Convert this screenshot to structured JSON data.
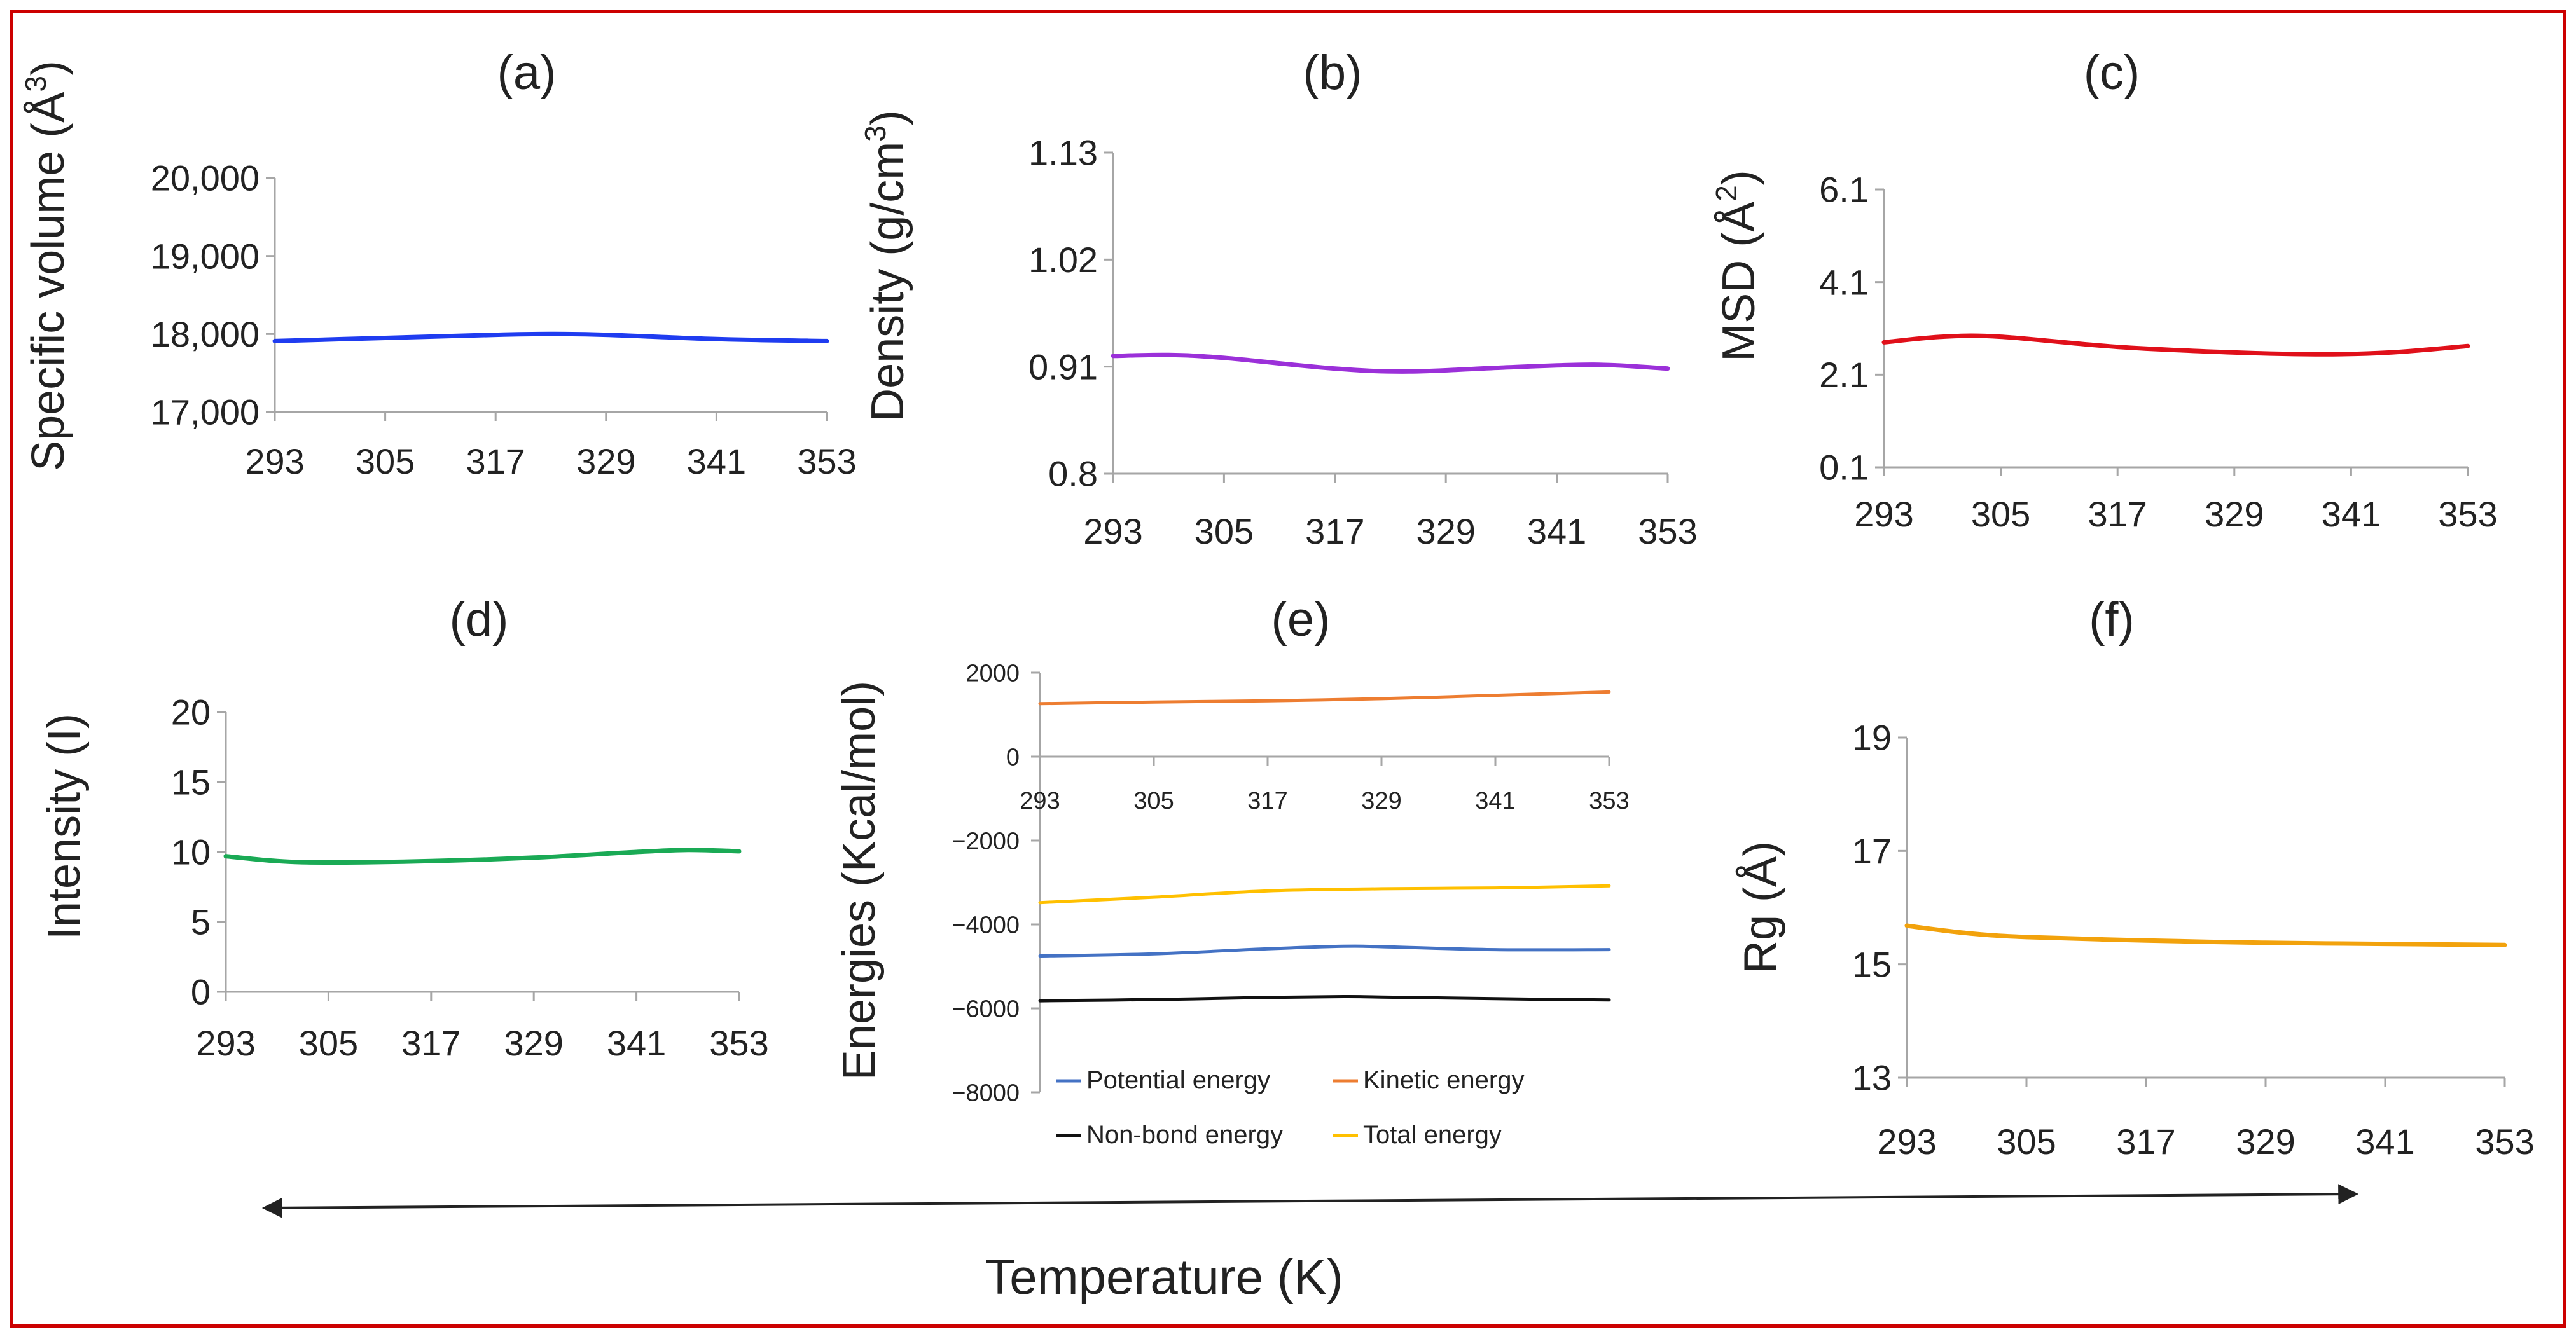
{
  "figure": {
    "border_color": "#cc0000",
    "xlabel": "Temperature (K)",
    "arrow": "double-headed-arrow"
  },
  "chart_data": [
    {
      "id": "a",
      "type": "line",
      "panel_label": "(a)",
      "xlabel": "",
      "ylabel": "Specific volume (Å³)",
      "ylabel_parts": [
        "Specific volume (",
        "Å",
        "3",
        ")"
      ],
      "x": [
        293,
        305,
        317,
        329,
        341,
        353
      ],
      "xticks": [
        "293",
        "305",
        "317",
        "329",
        "341",
        "353"
      ],
      "ylim": [
        17000,
        20000
      ],
      "yticks": [
        "17,000",
        "18,000",
        "19,000",
        "20,000"
      ],
      "grid": false,
      "series": [
        {
          "color": "#1f3cf0",
          "x": [
            293,
            305,
            317,
            323,
            329,
            341,
            353
          ],
          "values": [
            17910,
            17950,
            17990,
            18000,
            17990,
            17935,
            17910
          ]
        }
      ]
    },
    {
      "id": "b",
      "type": "line",
      "panel_label": "(b)",
      "xlabel": "",
      "ylabel": "Density (g/cm³)",
      "ylabel_parts": [
        "Density (g/cm",
        "",
        "3",
        ")"
      ],
      "x": [
        293,
        305,
        317,
        329,
        341,
        353
      ],
      "xticks": [
        "293",
        "305",
        "317",
        "329",
        "341",
        "353"
      ],
      "ylim": [
        0.8,
        1.13
      ],
      "yticks": [
        "0.8",
        "0.91",
        "1.02",
        "1.13"
      ],
      "grid": false,
      "series": [
        {
          "color": "#9b30d9",
          "x": [
            293,
            299,
            305,
            317,
            325,
            335,
            345,
            353
          ],
          "values": [
            0.921,
            0.922,
            0.919,
            0.908,
            0.905,
            0.909,
            0.912,
            0.908
          ]
        }
      ]
    },
    {
      "id": "c",
      "type": "line",
      "panel_label": "(c)",
      "xlabel": "",
      "ylabel": "MSD (Å²)",
      "ylabel_parts": [
        "MSD (",
        "Å",
        "2",
        ")"
      ],
      "x": [
        293,
        305,
        317,
        329,
        341,
        353
      ],
      "xticks": [
        "293",
        "305",
        "317",
        "329",
        "341",
        "353"
      ],
      "ylim": [
        0.1,
        6.1
      ],
      "yticks": [
        "0.1",
        "2.1",
        "4.1",
        "6.1"
      ],
      "grid": false,
      "series": [
        {
          "color": "#e0101a",
          "x": [
            293,
            299,
            305,
            317,
            329,
            338,
            345,
            353
          ],
          "values": [
            2.8,
            2.92,
            2.92,
            2.7,
            2.58,
            2.54,
            2.58,
            2.72
          ]
        }
      ]
    },
    {
      "id": "d",
      "type": "line",
      "panel_label": "(d)",
      "xlabel": "",
      "ylabel": "Intensity (I)",
      "ylabel_parts": [
        "Intensity (I)",
        "",
        "",
        ""
      ],
      "x": [
        293,
        305,
        317,
        329,
        341,
        353
      ],
      "xticks": [
        "293",
        "305",
        "317",
        "329",
        "341",
        "353"
      ],
      "ylim": [
        0,
        20
      ],
      "yticks": [
        "0",
        "5",
        "10",
        "15",
        "20"
      ],
      "grid": false,
      "series": [
        {
          "color": "#1aaa55",
          "x": [
            293,
            299,
            305,
            317,
            329,
            341,
            347,
            353
          ],
          "values": [
            9.7,
            9.35,
            9.25,
            9.35,
            9.6,
            10.0,
            10.15,
            10.05
          ]
        }
      ]
    },
    {
      "id": "e",
      "type": "line",
      "panel_label": "(e)",
      "xlabel": "",
      "ylabel": "Energies (Kcal/mol)",
      "ylabel_parts": [
        "Energies (Kcal/mol)",
        "",
        "",
        ""
      ],
      "x": [
        293,
        305,
        317,
        329,
        341,
        353
      ],
      "xticks": [
        "293",
        "305",
        "317",
        "329",
        "341",
        "353"
      ],
      "ylim": [
        -8000,
        2000
      ],
      "yticks": [
        "−8000",
        "−6000",
        "−4000",
        "−2000",
        "0",
        "2000"
      ],
      "grid": false,
      "legend_position": "bottom",
      "series": [
        {
          "name": "Potential energy",
          "color": "#4472c4",
          "x": [
            293,
            305,
            317,
            325,
            329,
            341,
            353
          ],
          "values": [
            -4750,
            -4700,
            -4580,
            -4520,
            -4530,
            -4600,
            -4600
          ]
        },
        {
          "name": "Kinetic energy",
          "color": "#ed7d31",
          "x": [
            293,
            305,
            317,
            329,
            341,
            353
          ],
          "values": [
            1260,
            1300,
            1330,
            1380,
            1460,
            1540
          ]
        },
        {
          "name": "Non-bond energy",
          "color": "#111111",
          "x": [
            293,
            305,
            317,
            325,
            329,
            341,
            353
          ],
          "values": [
            -5820,
            -5790,
            -5740,
            -5720,
            -5730,
            -5770,
            -5800
          ]
        },
        {
          "name": "Total energy",
          "color": "#ffc000",
          "x": [
            293,
            305,
            317,
            329,
            341,
            353
          ],
          "values": [
            -3480,
            -3350,
            -3200,
            -3150,
            -3130,
            -3080
          ]
        }
      ]
    },
    {
      "id": "f",
      "type": "line",
      "panel_label": "(f)",
      "xlabel": "",
      "ylabel": "Rg (Å)",
      "ylabel_parts": [
        "Rg (",
        "Å",
        "",
        ")"
      ],
      "x": [
        293,
        305,
        317,
        329,
        341,
        353
      ],
      "xticks": [
        "293",
        "305",
        "317",
        "329",
        "341",
        "353"
      ],
      "ylim": [
        13,
        19
      ],
      "yticks": [
        "13",
        "15",
        "17",
        "19"
      ],
      "grid": false,
      "series": [
        {
          "color": "#f2a20c",
          "x": [
            293,
            299,
            305,
            317,
            329,
            341,
            353
          ],
          "values": [
            15.68,
            15.55,
            15.48,
            15.42,
            15.38,
            15.36,
            15.34
          ]
        }
      ]
    }
  ]
}
